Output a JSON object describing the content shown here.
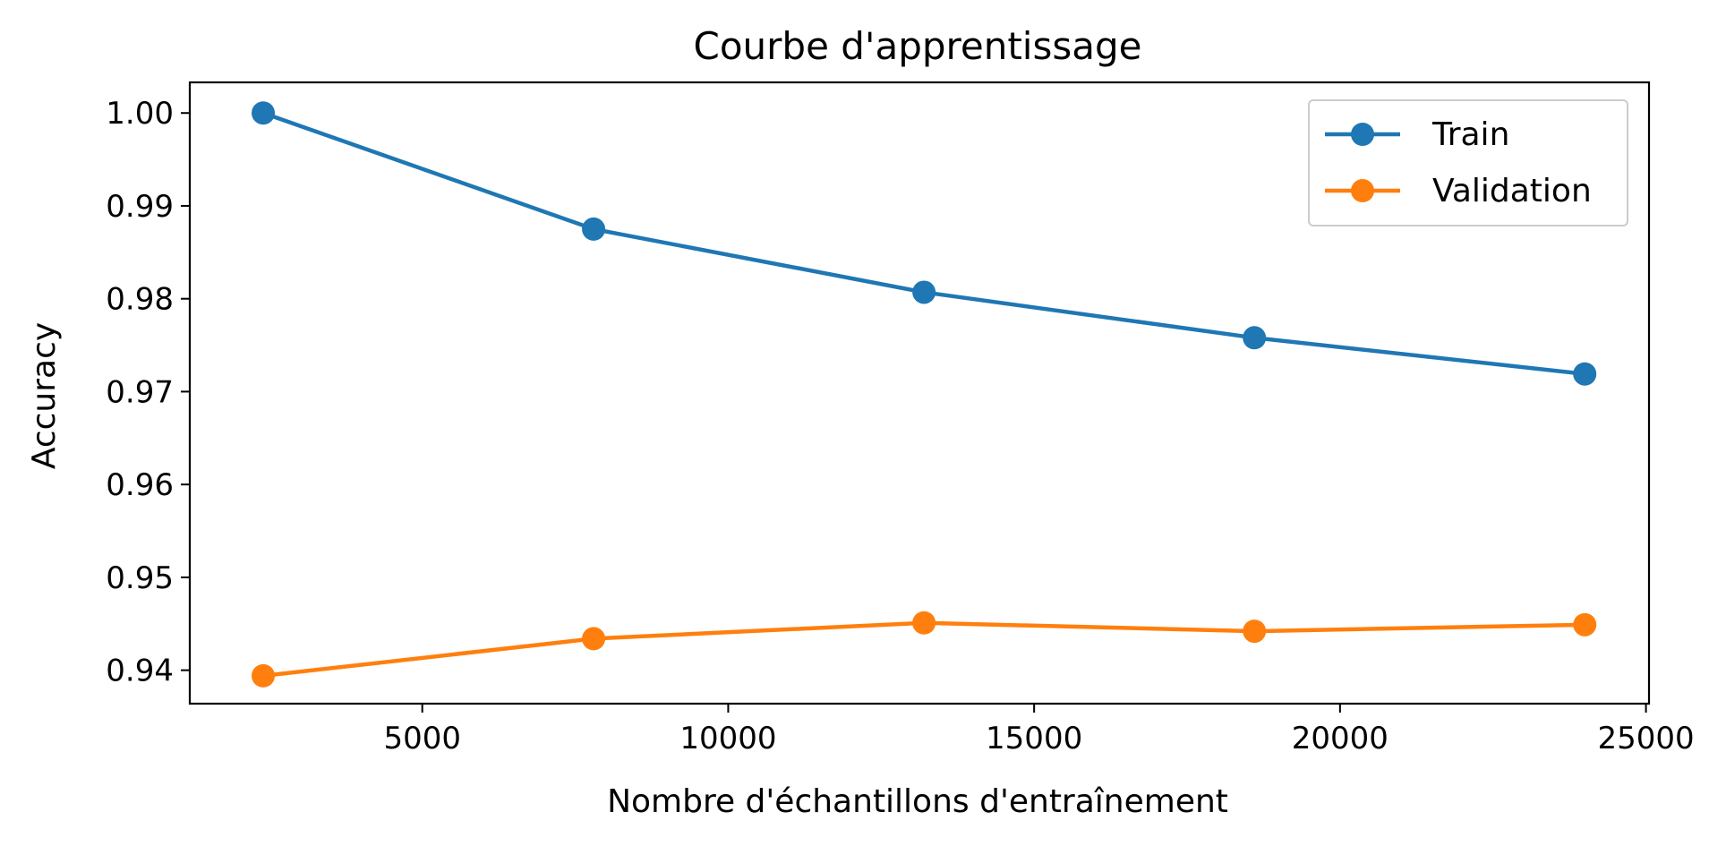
{
  "chart_data": {
    "type": "line",
    "title": "Courbe d'apprentissage",
    "xlabel": "Nombre d'échantillons d'entraînement",
    "ylabel": "Accuracy",
    "x": [
      2400,
      7800,
      13200,
      18600,
      24000
    ],
    "series": [
      {
        "name": "Train",
        "color": "#1f77b4",
        "values": [
          1.0,
          0.9875,
          0.9807,
          0.9758,
          0.9719
        ]
      },
      {
        "name": "Validation",
        "color": "#ff7f0e",
        "values": [
          0.9394,
          0.9434,
          0.9451,
          0.9442,
          0.9449
        ]
      }
    ],
    "xlim": [
      1200,
      25050
    ],
    "ylim": [
      0.9364,
      1.0033
    ],
    "xticks": [
      5000,
      10000,
      15000,
      20000,
      25000
    ],
    "xtick_labels": [
      "5000",
      "10000",
      "15000",
      "20000",
      "25000"
    ],
    "yticks": [
      0.94,
      0.95,
      0.96,
      0.97,
      0.98,
      0.99,
      1.0
    ],
    "ytick_labels": [
      "0.94",
      "0.95",
      "0.96",
      "0.97",
      "0.98",
      "0.99",
      "1.00"
    ],
    "grid": false,
    "legend_position": "top-right",
    "marker": "circle"
  }
}
